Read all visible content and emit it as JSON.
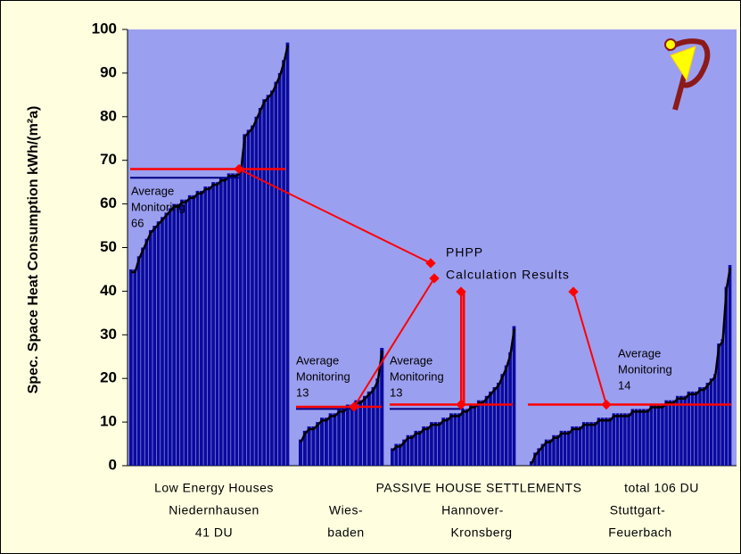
{
  "chart_data": {
    "type": "bar",
    "y_label": "Spec. Space Heat Consumption kWh/(m²a)",
    "ylim": [
      0,
      100
    ],
    "yticks": [
      0,
      10,
      20,
      30,
      40,
      50,
      60,
      70,
      80,
      90,
      100
    ],
    "color": "#0a0a9e",
    "plot_background": "#9b9ff0",
    "phpp_color": "#ff0000",
    "monitoring_color": "#000080",
    "annotation": [
      "PHPP",
      "Calculation Results"
    ],
    "avg_label": [
      "Average",
      "Monitoring"
    ],
    "category_labels": {
      "low_energy": [
        "Low Energy Houses",
        "Niedernhausen",
        "41 DU"
      ],
      "passive": [
        "PASSIVE HOUSE SETTLEMENTS",
        "total 106 DU"
      ],
      "wiesbaden": [
        "Wies-",
        "baden"
      ],
      "hannover": [
        "Hannover-",
        "Kronsberg"
      ],
      "stuttgart": [
        "Stuttgart-",
        "Feuerbach"
      ]
    },
    "groups": [
      {
        "values": [
          45,
          45,
          48,
          50,
          52,
          54,
          55,
          56,
          57,
          58,
          59,
          60,
          60,
          61,
          61,
          62,
          62,
          63,
          63,
          64,
          64,
          65,
          65,
          66,
          66,
          67,
          67,
          67,
          68,
          76,
          77,
          78,
          80,
          82,
          84,
          85,
          86,
          88,
          90,
          93,
          97
        ],
        "avg_monitoring": 66,
        "phpp": 68
      },
      {
        "values": [
          6,
          8,
          9,
          9,
          10,
          11,
          11,
          12,
          12,
          13,
          13,
          14,
          14,
          15,
          15,
          16,
          17,
          18,
          20,
          27
        ],
        "avg_monitoring": 13,
        "phpp": 13.5
      },
      {
        "values": [
          4,
          5,
          5,
          6,
          7,
          7,
          8,
          8,
          9,
          9,
          10,
          10,
          10,
          11,
          11,
          12,
          12,
          12,
          13,
          13,
          14,
          14,
          15,
          15,
          16,
          17,
          18,
          19,
          21,
          23,
          26,
          32
        ],
        "avg_monitoring": 13,
        "phpp": 14
      },
      {
        "values": [
          1,
          3,
          4,
          5,
          6,
          6,
          7,
          7,
          8,
          8,
          8,
          9,
          9,
          9,
          10,
          10,
          10,
          10,
          11,
          11,
          11,
          11,
          12,
          12,
          12,
          12,
          12,
          13,
          13,
          13,
          13,
          13,
          14,
          14,
          14,
          14,
          15,
          15,
          15,
          16,
          16,
          16,
          17,
          17,
          17,
          18,
          18,
          19,
          20,
          21,
          28,
          29,
          41,
          46
        ],
        "avg_monitoring": 14,
        "phpp": 14
      }
    ]
  }
}
